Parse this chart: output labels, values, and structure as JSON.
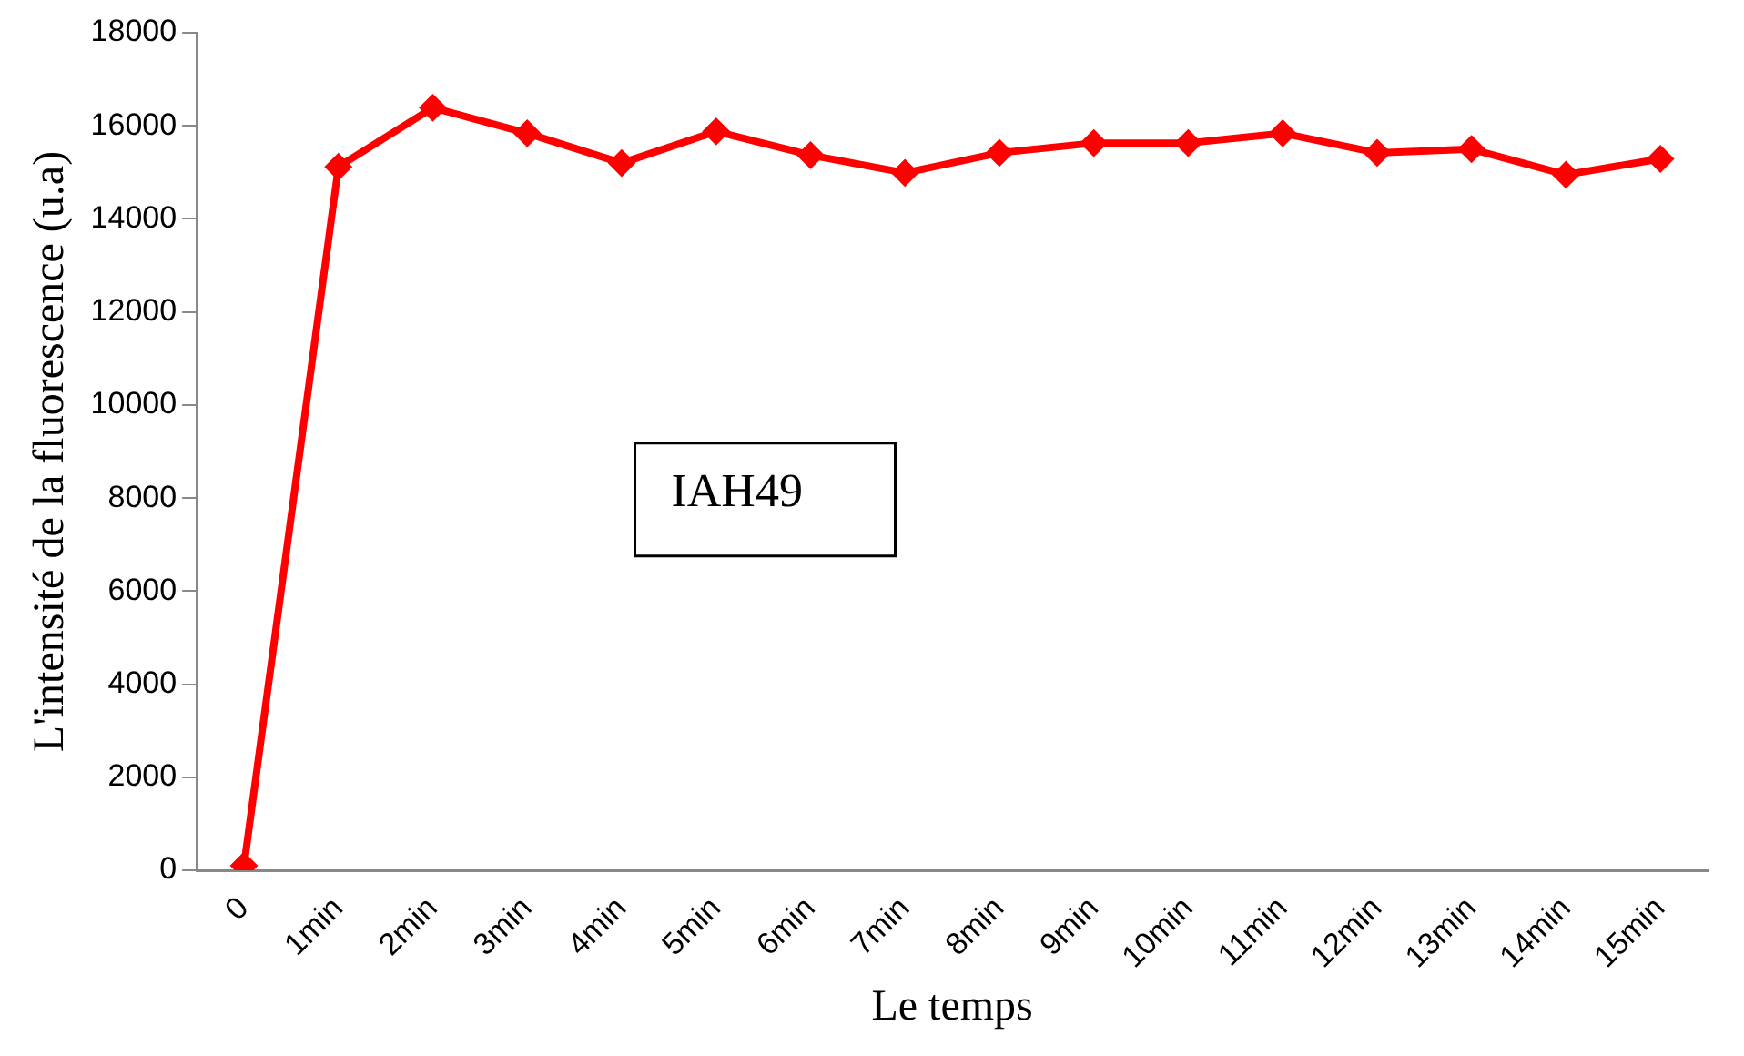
{
  "chart_data": {
    "type": "line",
    "xlabel": "Le temps",
    "ylabel": "L'intensité de la fluorescence (u.a)",
    "categories": [
      "0",
      "1min",
      "2min",
      "3min",
      "4min",
      "5min",
      "6min",
      "7min",
      "8min",
      "9min",
      "10min",
      "11min",
      "12min",
      "13min",
      "14min",
      "15min"
    ],
    "series": [
      {
        "color": "#ff0000",
        "values": [
          100,
          15120,
          16390,
          15840,
          15200,
          15880,
          15370,
          14990,
          15420,
          15630,
          15630,
          15840,
          15420,
          15500,
          14950,
          15290
        ]
      }
    ],
    "ylim": [
      0,
      18000
    ],
    "yticks": [
      0,
      2000,
      4000,
      6000,
      8000,
      10000,
      12000,
      14000,
      16000,
      18000
    ],
    "grid": false,
    "legend": false,
    "marker": "diamond",
    "line_style": "solid",
    "annotations": [
      "IAH49"
    ]
  }
}
